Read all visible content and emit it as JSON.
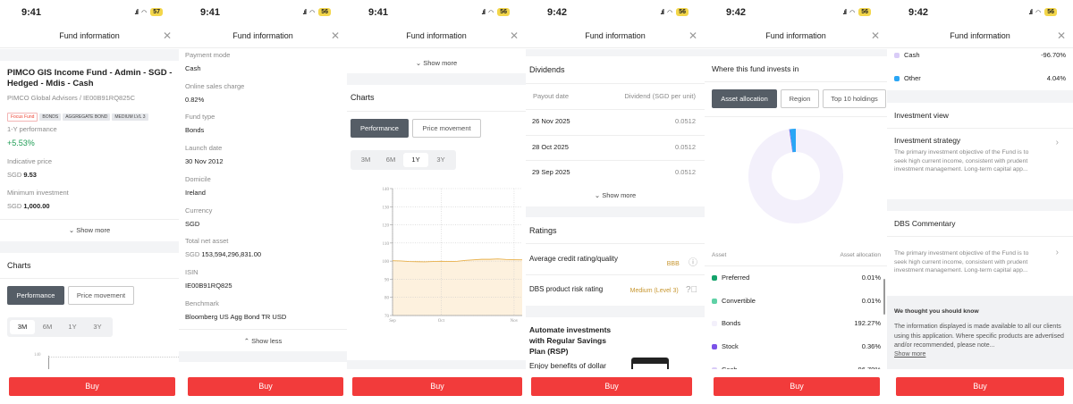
{
  "common": {
    "header_title": "Fund information",
    "buy_label": "Buy",
    "close_icon": "close-icon",
    "show_more": "Show more",
    "show_less": "Show less"
  },
  "status": [
    {
      "time": "9:41",
      "battery": "57"
    },
    {
      "time": "9:41",
      "battery": "56"
    },
    {
      "time": "9:41",
      "battery": "56"
    },
    {
      "time": "9:42",
      "battery": "56"
    },
    {
      "time": "9:42",
      "battery": "56"
    },
    {
      "time": "9:42",
      "battery": "56"
    }
  ],
  "fund": {
    "name_line1": "PIMCO GIS Income Fund - Admin - SGD -",
    "name_line2": "Hedged - Mdis - Cash",
    "subtitle": "PIMCO Global Advisors / IE00B91RQ825C",
    "tags": [
      "Focus Fund",
      "BONDS",
      "AGGREGATE BOND",
      "MEDIUM LVL 3"
    ],
    "performance_label": "1-Y performance",
    "performance_value": "+5.53%",
    "price_label": "Indicative price",
    "price_ccy": "SGD",
    "price_value": "9.53",
    "min_label": "Minimum investment",
    "min_ccy": "SGD",
    "min_value": "1,000.00"
  },
  "details": [
    {
      "label": "Payment mode",
      "value": "Cash"
    },
    {
      "label": "Online sales charge",
      "value": "0.82%"
    },
    {
      "label": "Fund type",
      "value": "Bonds"
    },
    {
      "label": "Launch date",
      "value": "30 Nov 2012"
    },
    {
      "label": "Domicile",
      "value": "Ireland"
    },
    {
      "label": "Currency",
      "value": "SGD"
    },
    {
      "label": "Total net asset",
      "ccy": "SGD",
      "value": "153,594,296,831.00"
    },
    {
      "label": "ISIN",
      "value": "IE00B91RQ825"
    },
    {
      "label": "Benchmark",
      "value": "Bloomberg US Agg Bond TR USD"
    }
  ],
  "charts": {
    "title": "Charts",
    "types": [
      "Performance",
      "Price movement"
    ],
    "periods": [
      "3M",
      "6M",
      "1Y",
      "3Y"
    ],
    "panel1_selected": "3M",
    "panel3_selected": "1Y",
    "panel1_tick": "140"
  },
  "chart_data": {
    "type": "area",
    "x": [
      "Sep",
      "",
      "",
      "",
      "",
      "",
      "Oct",
      "",
      "",
      "",
      "",
      "",
      "",
      "",
      "",
      "Nov",
      ""
    ],
    "xticks": [
      "Sep",
      "Oct",
      "Nov"
    ],
    "yticks": [
      "70",
      "80",
      "90",
      "100",
      "110",
      "120",
      "130",
      "140"
    ],
    "ylim": [
      70,
      140
    ],
    "values": [
      100.2,
      100.1,
      99.8,
      99.7,
      99.6,
      99.8,
      99.9,
      99.8,
      99.9,
      100.4,
      100.7,
      101.0,
      101.0,
      101.2,
      100.9,
      100.8,
      100.7
    ],
    "grid": true,
    "line_color": "#e8b04a",
    "fill_color": "#fdf1de"
  },
  "dividends": {
    "title": "Dividends",
    "col1": "Payout date",
    "col2": "Dividend (SGD per unit)",
    "rows": [
      {
        "date": "26 Nov 2025",
        "value": "0.0512"
      },
      {
        "date": "28 Oct 2025",
        "value": "0.0512"
      },
      {
        "date": "29 Sep 2025",
        "value": "0.0512"
      }
    ]
  },
  "ratings": {
    "title": "Ratings",
    "rows": [
      {
        "label": "Average credit rating/quality",
        "value": "BBB",
        "icon": "info-icon"
      },
      {
        "label": "DBS product risk rating",
        "value": "Medium (Level 3)",
        "icon": "question-icon"
      }
    ]
  },
  "rsp": {
    "title_l1": "Automate investments",
    "title_l2": "with Regular Savings",
    "title_l3": "Plan (RSP)",
    "body": "Enjoy benefits of dollar"
  },
  "allocation": {
    "title": "Where this fund invests in",
    "tabs": [
      "Asset allocation",
      "Region",
      "Top 10 holdings"
    ],
    "col1": "Asset",
    "col2": "Asset allocation",
    "rows": [
      {
        "name": "Preferred",
        "value": "0.01%",
        "num": 0.01,
        "color": "#14a36b"
      },
      {
        "name": "Convertible",
        "value": "0.01%",
        "num": 0.01,
        "color": "#5fd1a6"
      },
      {
        "name": "Bonds",
        "value": "192.27%",
        "num": 192.27,
        "color": "#f3f0fb"
      },
      {
        "name": "Stock",
        "value": "0.36%",
        "num": 0.36,
        "color": "#7b52e8"
      },
      {
        "name": "Cash",
        "value": "-96.70%",
        "num": -96.7,
        "color": "#d9ccf7"
      },
      {
        "name": "Other",
        "value": "4.04%",
        "num": 4.04,
        "color": "#2aa6f5"
      }
    ]
  },
  "investment_view": {
    "title": "Investment view",
    "strategy_title": "Investment strategy",
    "strategy_text": "The primary investment objective of the Fund is to seek high current income, consistent with prudent investment management. Long-term capital app..."
  },
  "commentary": {
    "title": "DBS Commentary",
    "text": "The primary investment objective of the Fund is to seek high current income, consistent with prudent investment management. Long-term capital app..."
  },
  "notice": {
    "title": "We thought you should know",
    "text": "The information displayed is made available to all our clients using this application. Where specific products are advertised and/or recommended, please note...",
    "link": "Show more"
  }
}
